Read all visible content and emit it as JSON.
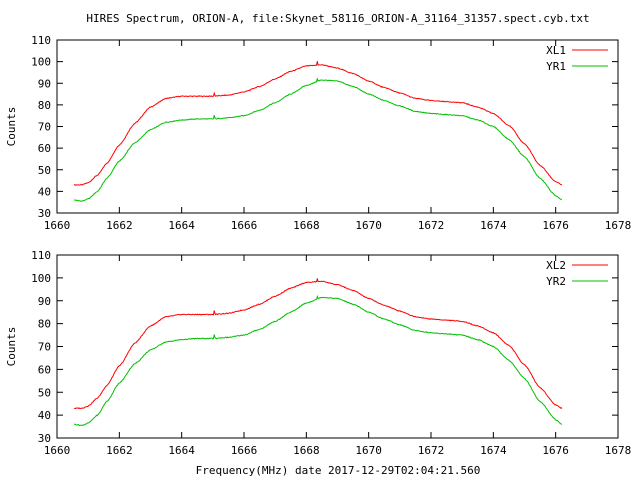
{
  "title": "HIRES Spectrum, ORION-A, file:Skynet_58116_ORION-A_31164_31357.spect.cyb.txt",
  "footer": "Frequency(MHz) date 2017-12-29T02:04:21.560",
  "chart_data": [
    {
      "type": "line",
      "ylabel": "Counts",
      "xlim": [
        1660,
        1678
      ],
      "ylim": [
        30,
        110
      ],
      "xticks": [
        "1660",
        "1662",
        "1664",
        "1666",
        "1668",
        "1670",
        "1672",
        "1674",
        "1676",
        "1678"
      ],
      "yticks": [
        "30",
        "40",
        "50",
        "60",
        "70",
        "80",
        "90",
        "100",
        "110"
      ],
      "legend_position": "top-right",
      "x": [
        1660.55,
        1660.8,
        1661.0,
        1661.3,
        1661.6,
        1662.0,
        1662.5,
        1663.0,
        1663.5,
        1664.0,
        1664.5,
        1665.0,
        1665.5,
        1666.0,
        1666.5,
        1667.0,
        1667.5,
        1668.0,
        1668.5,
        1669.0,
        1669.5,
        1670.0,
        1670.5,
        1671.0,
        1671.5,
        1672.0,
        1672.5,
        1673.0,
        1673.5,
        1674.0,
        1674.5,
        1675.0,
        1675.5,
        1676.0,
        1676.2
      ],
      "series": [
        {
          "name": "XL1",
          "color": "#ff0000",
          "values": [
            43,
            43,
            44,
            47.5,
            53,
            61.5,
            71.5,
            79,
            83,
            84,
            84,
            84,
            84.5,
            86,
            88.5,
            92,
            95.5,
            98,
            98.5,
            97,
            94.5,
            91,
            88,
            85.5,
            83,
            82,
            81.5,
            81,
            79,
            76,
            70.5,
            62,
            52,
            44.5,
            43
          ]
        },
        {
          "name": "YR1",
          "color": "#00c000",
          "values": [
            36,
            35.5,
            36.5,
            40,
            46,
            54,
            62.5,
            68.5,
            72,
            73,
            73.5,
            73.5,
            74,
            75,
            77.5,
            81,
            85,
            89,
            91.5,
            91,
            88.5,
            85,
            82,
            79.5,
            77,
            76,
            75.5,
            75,
            73,
            70,
            64,
            56,
            46,
            38,
            36
          ]
        }
      ],
      "spikes": [
        {
          "x": 1665.05,
          "values": [
            86,
            76
          ]
        },
        {
          "x": 1668.35,
          "values": [
            100.5,
            92.5
          ]
        }
      ]
    },
    {
      "type": "line",
      "ylabel": "Counts",
      "xlim": [
        1660,
        1678
      ],
      "ylim": [
        30,
        110
      ],
      "xticks": [
        "1660",
        "1662",
        "1664",
        "1666",
        "1668",
        "1670",
        "1672",
        "1674",
        "1676",
        "1678"
      ],
      "yticks": [
        "30",
        "40",
        "50",
        "60",
        "70",
        "80",
        "90",
        "100",
        "110"
      ],
      "legend_position": "top-right",
      "x": [
        1660.55,
        1660.8,
        1661.0,
        1661.3,
        1661.6,
        1662.0,
        1662.5,
        1663.0,
        1663.5,
        1664.0,
        1664.5,
        1665.0,
        1665.5,
        1666.0,
        1666.5,
        1667.0,
        1667.5,
        1668.0,
        1668.5,
        1669.0,
        1669.5,
        1670.0,
        1670.5,
        1671.0,
        1671.5,
        1672.0,
        1672.5,
        1673.0,
        1673.5,
        1674.0,
        1674.5,
        1675.0,
        1675.5,
        1676.0,
        1676.2
      ],
      "series": [
        {
          "name": "XL2",
          "color": "#ff0000",
          "values": [
            43,
            43,
            44,
            47.5,
            53,
            61.5,
            71.5,
            79,
            83,
            84,
            84,
            84,
            84.5,
            86,
            88.5,
            92,
            95.5,
            98,
            98.5,
            97,
            94.5,
            91,
            88,
            85.5,
            83,
            82,
            81.5,
            81,
            79,
            76,
            70.5,
            62,
            52,
            44.5,
            43
          ]
        },
        {
          "name": "YR2",
          "color": "#00c000",
          "values": [
            36,
            35.5,
            36.5,
            40,
            46,
            54,
            62.5,
            68.5,
            72,
            73,
            73.5,
            73.5,
            74,
            75,
            77.5,
            81,
            85,
            89,
            91.5,
            91,
            88.5,
            85,
            82,
            79.5,
            77,
            76,
            75.5,
            75,
            73,
            70,
            64,
            56,
            46,
            38,
            36
          ]
        }
      ],
      "spikes": [
        {
          "x": 1665.05,
          "values": [
            86.5,
            76
          ]
        },
        {
          "x": 1668.35,
          "values": [
            100,
            92
          ]
        }
      ]
    }
  ]
}
